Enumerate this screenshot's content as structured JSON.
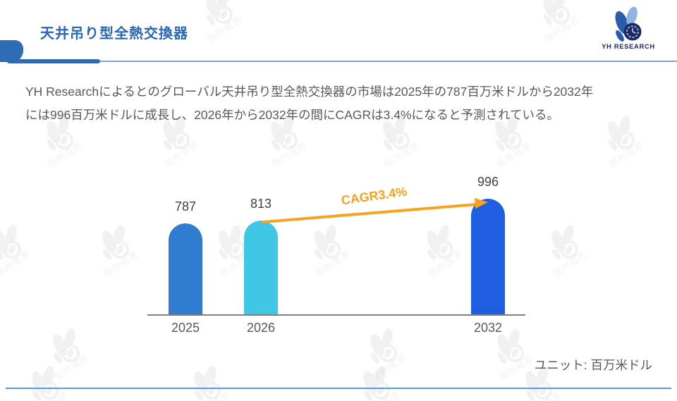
{
  "header": {
    "title": "天井吊り型全熱交換器",
    "logo_text": "YH RESEARCH",
    "logo_icon": "yh-research-logo-icon"
  },
  "intro": {
    "line1": "YH Researchによるとのグローバル天井吊り型全熱交換器の市場は2025年の787百万米ドルから2032年",
    "line2": "には996百万米ドルに成長し、2026年から2032年の間にCAGRは3.4%になると予測されている。"
  },
  "chart_data": {
    "type": "bar",
    "categories": [
      "2025",
      "2026",
      "2032"
    ],
    "values": [
      787,
      813,
      996
    ],
    "data_labels": [
      "787",
      "813",
      "996"
    ],
    "bar_colors": [
      "#2F7CD0",
      "#41C7E6",
      "#1E5EE0"
    ],
    "annotation": "CAGR3.4%",
    "annotation_color": "#F8A21D",
    "unit_label": "ユニット: 百万米ドル",
    "title": "",
    "xlabel": "",
    "ylabel": "",
    "ylim": [
      0,
      1100
    ],
    "grid": false,
    "legend": false,
    "y_axis_visible": false,
    "baseline_color": "#7f7f7f"
  },
  "decoration": {
    "watermark_text": "恒州诚思"
  },
  "colors": {
    "title_blue": "#2766b8",
    "accent_blue": "#2e6cb5",
    "header_rule_blue": "#7fa8d9",
    "footer_rule_blue": "#5b9bd5",
    "body_gray": "#595959",
    "logo_navy": "#1b2a63",
    "logo_blue": "#2b5cab",
    "logo_light_blue": "#8fb4e3"
  }
}
